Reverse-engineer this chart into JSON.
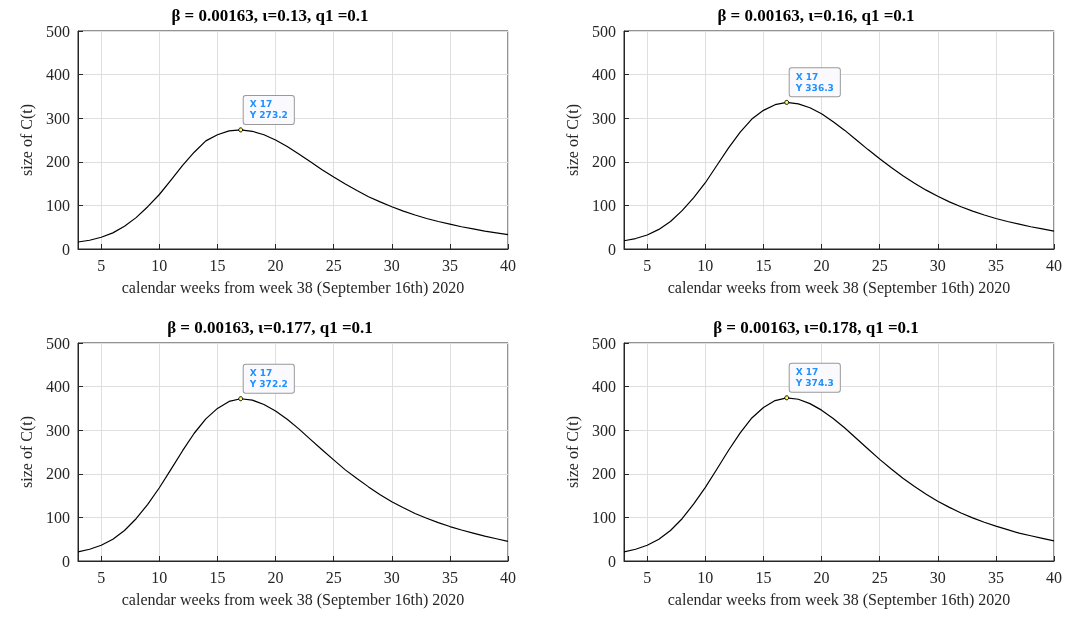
{
  "chart_data": [
    {
      "type": "line",
      "title": "β = 0.00163, ι=0.13, q1 =0.1",
      "xlabel": "calendar weeks from week 38 (September 16th) 2020",
      "ylabel": "size of C(t)",
      "x": [
        3,
        4,
        5,
        6,
        7,
        8,
        9,
        10,
        11,
        12,
        13,
        14,
        15,
        16,
        17,
        18,
        19,
        20,
        21,
        22,
        23,
        24,
        25,
        26,
        27,
        28,
        29,
        30,
        31,
        32,
        33,
        34,
        35,
        36,
        37,
        38,
        39,
        40
      ],
      "series": [
        {
          "color": "#000000",
          "values": [
            16,
            20,
            27,
            37,
            52,
            72,
            97,
            125,
            158,
            192,
            222,
            248,
            262,
            271,
            273.2,
            270,
            262,
            250,
            235,
            218,
            200,
            182,
            165,
            149,
            134,
            120,
            108,
            97,
            87,
            78,
            70,
            63,
            57,
            51,
            46,
            41,
            37,
            33
          ]
        }
      ],
      "xlim": [
        3,
        40
      ],
      "xticks": [
        5,
        10,
        15,
        20,
        25,
        30,
        35,
        40
      ],
      "ylim": [
        0,
        500
      ],
      "yticks": [
        0,
        100,
        200,
        300,
        400,
        500
      ],
      "grid": true,
      "marker": "none",
      "annotations": [
        "X 17\nY 273.2"
      ]
    },
    {
      "type": "line",
      "title": "β = 0.00163, ι=0.16, q1 =0.1",
      "xlabel": "calendar weeks from week 38 (September 16th) 2020",
      "ylabel": "size of C(t)",
      "x": [
        3,
        4,
        5,
        6,
        7,
        8,
        9,
        10,
        11,
        12,
        13,
        14,
        15,
        16,
        17,
        18,
        19,
        20,
        21,
        22,
        23,
        24,
        25,
        26,
        27,
        28,
        29,
        30,
        31,
        32,
        33,
        34,
        35,
        36,
        37,
        38,
        39,
        40
      ],
      "series": [
        {
          "color": "#000000",
          "values": [
            19,
            24,
            32,
            45,
            63,
            88,
            118,
            152,
            192,
            232,
            268,
            298,
            318,
            331,
            336.3,
            333,
            324,
            310,
            292,
            272,
            250,
            228,
            207,
            187,
            168,
            151,
            135,
            121,
            108,
            97,
            87,
            78,
            70,
            63,
            57,
            51,
            46,
            41
          ]
        }
      ],
      "xlim": [
        3,
        40
      ],
      "xticks": [
        5,
        10,
        15,
        20,
        25,
        30,
        35,
        40
      ],
      "ylim": [
        0,
        500
      ],
      "yticks": [
        0,
        100,
        200,
        300,
        400,
        500
      ],
      "grid": true,
      "marker": "none",
      "annotations": [
        "X 17\nY 336.3"
      ]
    },
    {
      "type": "line",
      "title": "β = 0.00163, ι=0.177, q1 =0.1",
      "xlabel": "calendar weeks from week 38 (September 16th) 2020",
      "ylabel": "size of C(t)",
      "x": [
        3,
        4,
        5,
        6,
        7,
        8,
        9,
        10,
        11,
        12,
        13,
        14,
        15,
        16,
        17,
        18,
        19,
        20,
        21,
        22,
        23,
        24,
        25,
        26,
        27,
        28,
        29,
        30,
        31,
        32,
        33,
        34,
        35,
        36,
        37,
        38,
        39,
        40
      ],
      "series": [
        {
          "color": "#000000",
          "values": [
            21,
            27,
            36,
            50,
            70,
            97,
            130,
            168,
            210,
            253,
            293,
            326,
            350,
            366,
            372.2,
            369,
            359,
            344,
            325,
            303,
            279,
            255,
            232,
            209,
            189,
            170,
            152,
            136,
            122,
            109,
            98,
            88,
            79,
            71,
            64,
            57,
            51,
            45
          ]
        }
      ],
      "xlim": [
        3,
        40
      ],
      "xticks": [
        5,
        10,
        15,
        20,
        25,
        30,
        35,
        40
      ],
      "ylim": [
        0,
        500
      ],
      "yticks": [
        0,
        100,
        200,
        300,
        400,
        500
      ],
      "grid": true,
      "marker": "none",
      "annotations": [
        "X 17\nY 372.2"
      ]
    },
    {
      "type": "line",
      "title": "β = 0.00163, ι=0.178, q1 =0.1",
      "xlabel": "calendar weeks from week 38 (September 16th) 2020",
      "ylabel": "size of C(t)",
      "x": [
        3,
        4,
        5,
        6,
        7,
        8,
        9,
        10,
        11,
        12,
        13,
        14,
        15,
        16,
        17,
        18,
        19,
        20,
        21,
        22,
        23,
        24,
        25,
        26,
        27,
        28,
        29,
        30,
        31,
        32,
        33,
        34,
        35,
        36,
        37,
        38,
        39,
        40
      ],
      "series": [
        {
          "color": "#000000",
          "values": [
            21,
            27,
            36,
            50,
            70,
            97,
            131,
            169,
            211,
            254,
            294,
            328,
            352,
            368,
            374.3,
            371,
            361,
            346,
            327,
            305,
            281,
            257,
            233,
            211,
            190,
            171,
            153,
            137,
            123,
            110,
            99,
            89,
            80,
            72,
            64,
            58,
            52,
            46
          ]
        }
      ],
      "xlim": [
        3,
        40
      ],
      "xticks": [
        5,
        10,
        15,
        20,
        25,
        30,
        35,
        40
      ],
      "ylim": [
        0,
        500
      ],
      "yticks": [
        0,
        100,
        200,
        300,
        400,
        500
      ],
      "grid": true,
      "marker": "none",
      "annotations": [
        "X 17\nY 374.3"
      ]
    }
  ]
}
